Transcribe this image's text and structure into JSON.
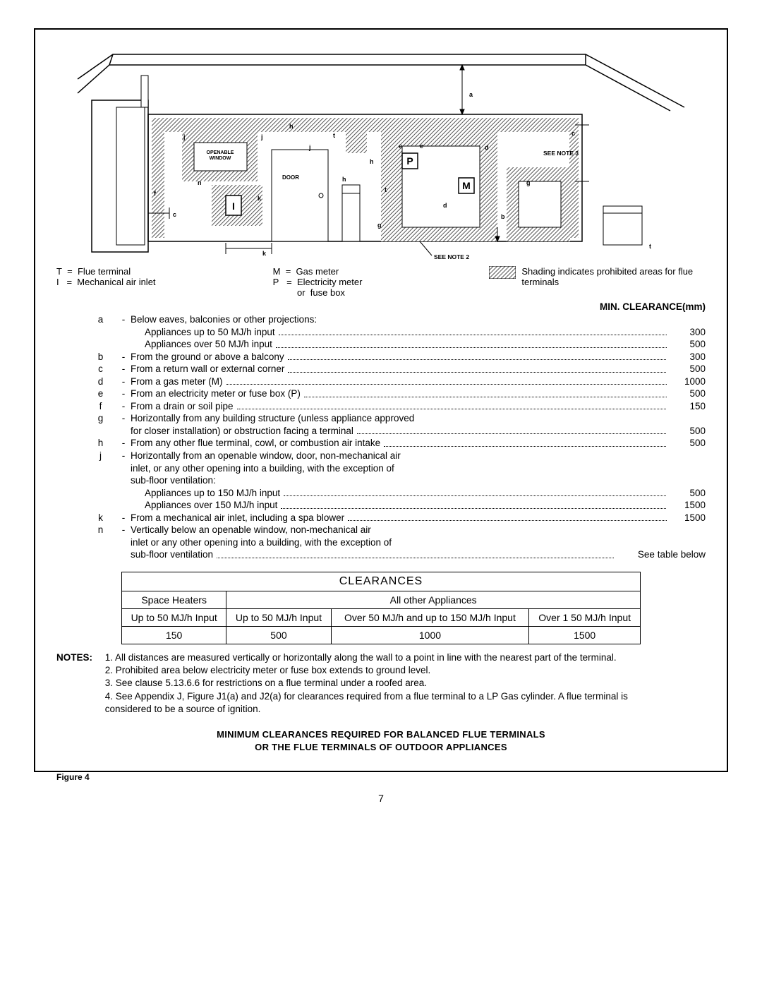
{
  "diagram": {
    "labels": {
      "openable_window": "OPENABLE WINDOW",
      "door": "DOOR",
      "see_note_2": "SEE NOTE 2",
      "see_note_3": "SEE NOTE 3",
      "I": "I",
      "P": "P",
      "M": "M",
      "a": "a",
      "b": "b",
      "c": "c",
      "d": "d",
      "e": "e",
      "f": "f",
      "g": "g",
      "h": "h",
      "j": "j",
      "k": "k",
      "n": "n",
      "t": "t"
    },
    "shading_color": "#7a7a7a"
  },
  "legend": {
    "T": "Flue terminal",
    "I": "Mechanical air inlet",
    "M": "Gas meter",
    "P": "Electricity meter or  fuse box",
    "shading": "Shading indicates prohibited areas for flue terminals"
  },
  "min_header": "MIN. CLEARANCE(mm)",
  "clearances": [
    {
      "key": "a",
      "dash": "-",
      "lines": [
        {
          "text": "Below eaves, balconies or other projections:",
          "val": ""
        },
        {
          "text": "Appliances up to 50 MJ/h input",
          "val": "300",
          "indent": true,
          "dotted": true
        },
        {
          "text": "Appliances over 50 MJ/h input",
          "val": "500",
          "indent": true,
          "dotted": true
        }
      ]
    },
    {
      "key": "b",
      "dash": "-",
      "lines": [
        {
          "text": "From the ground or above a balcony",
          "val": "300",
          "dotted": true
        }
      ]
    },
    {
      "key": "c",
      "dash": "-",
      "lines": [
        {
          "text": "From a return wall or external corner",
          "val": "500",
          "dotted": true
        }
      ]
    },
    {
      "key": "d",
      "dash": "-",
      "lines": [
        {
          "text": "From a gas meter (M)",
          "val": "1000",
          "dotted": true
        }
      ]
    },
    {
      "key": "e",
      "dash": "-",
      "lines": [
        {
          "text": "From an electricity meter or fuse box (P)",
          "val": "500",
          "dotted": true
        }
      ]
    },
    {
      "key": "f",
      "dash": "-",
      "lines": [
        {
          "text": "From a drain or soil pipe",
          "val": "150",
          "dotted": true
        }
      ]
    },
    {
      "key": "g",
      "dash": "-",
      "lines": [
        {
          "text": "Horizontally from any building structure (unless appliance approved",
          "val": ""
        },
        {
          "text": "for closer installation) or obstruction facing a terminal",
          "val": "500",
          "dotted": true
        }
      ]
    },
    {
      "key": "h",
      "dash": "-",
      "lines": [
        {
          "text": "From any other flue terminal, cowl, or combustion air intake",
          "val": "500",
          "dotted": true
        }
      ]
    },
    {
      "key": "j",
      "dash": "-",
      "lines": [
        {
          "text": "Horizontally from an openable window, door, non-mechanical air",
          "val": ""
        },
        {
          "text": "inlet, or any other opening into a building, with the exception of",
          "val": ""
        },
        {
          "text": "sub-floor ventilation:",
          "val": ""
        },
        {
          "text": "Appliances up to 150 MJ/h input",
          "val": "500",
          "indent": true,
          "dotted": true
        },
        {
          "text": "Appliances over 150 MJ/h input",
          "val": "1500",
          "indent": true,
          "dotted": true
        }
      ]
    },
    {
      "key": "k",
      "dash": "-",
      "lines": [
        {
          "text": "From  a mechanical air inlet, including a spa blower",
          "val": "1500",
          "dotted": true
        }
      ]
    },
    {
      "key": "n",
      "dash": "-",
      "lines": [
        {
          "text": "Vertically below an openable window, non-mechanical air",
          "val": ""
        },
        {
          "text": "inlet or any other opening into a building, with the exception of",
          "val": ""
        },
        {
          "text": "sub-floor ventilation",
          "val": "See table below",
          "dotted": true,
          "wideval": true
        }
      ]
    }
  ],
  "table": {
    "title": "CLEARANCES",
    "headers": [
      "Space Heaters",
      "All other Appliances"
    ],
    "subheaders": [
      "Up to 50 MJ/h Input",
      "Up to 50 MJ/h Input",
      "Over 50 MJ/h and up to 150 MJ/h Input",
      "Over 1 50 MJ/h Input"
    ],
    "values": [
      "150",
      "500",
      "1000",
      "1500"
    ]
  },
  "notes": {
    "label": "NOTES:",
    "items": [
      "1. All distances are measured vertically or horizontally along the wall to a point in line with the nearest part of the terminal.",
      "2. Prohibited area below electricity meter or fuse box extends to ground level.",
      "3. See clause 5.13.6.6 for restrictions on a flue terminal under a roofed area.",
      "4. See Appendix J, Figure J1(a) and J2(a) for clearances required from a flue terminal to a LP Gas cylinder.  A flue terminal is considered to be a source of  ignition."
    ]
  },
  "footer": {
    "line1": "MINIMUM CLEARANCES REQUIRED FOR BALANCED FLUE TERMINALS",
    "line2": "OR THE FLUE TERMINALS OF OUTDOOR APPLIANCES"
  },
  "figure_label": "Figure 4",
  "page_number": "7"
}
